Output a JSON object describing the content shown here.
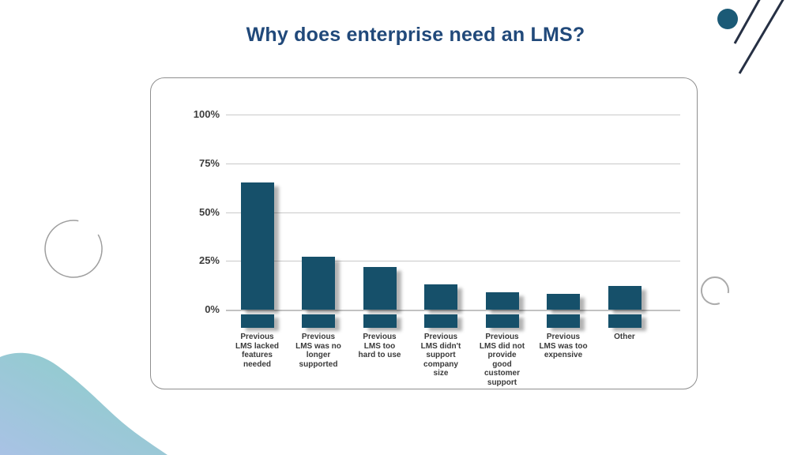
{
  "slide": {
    "title": "Why does enterprise need an LMS?"
  },
  "chart_data": {
    "type": "bar",
    "title": "Why does enterprise need an LMS?",
    "xlabel": "",
    "ylabel": "",
    "unit": "%",
    "ylim": [
      0,
      100
    ],
    "grid": true,
    "legend": false,
    "yticks": [
      {
        "value": 100,
        "label": "100%"
      },
      {
        "value": 75,
        "label": "75%"
      },
      {
        "value": 50,
        "label": "50%"
      },
      {
        "value": 25,
        "label": "25%"
      },
      {
        "value": 0,
        "label": "0%"
      }
    ],
    "categories": [
      {
        "label": "Previous LMS lacked features needed",
        "lines": [
          "Previous",
          "LMS lacked",
          "features",
          "needed"
        ]
      },
      {
        "label": "Previous LMS was no longer supported",
        "lines": [
          "Previous",
          "LMS was no",
          "longer",
          "supported"
        ]
      },
      {
        "label": "Previous LMS too hard to use",
        "lines": [
          "Previous",
          "LMS too",
          "hard to use"
        ]
      },
      {
        "label": "Previous LMS didn't support company size",
        "lines": [
          "Previous",
          "LMS didn't",
          "support",
          "company",
          "size"
        ]
      },
      {
        "label": "Previous LMS did not provide good customer support",
        "lines": [
          "Previous",
          "LMS did not",
          "provide",
          "good",
          "customer",
          "support"
        ]
      },
      {
        "label": "Previous LMS was too expensive",
        "lines": [
          "Previous",
          "LMS was too",
          "expensive"
        ]
      },
      {
        "label": "Other",
        "lines": [
          "Other"
        ]
      }
    ],
    "values": [
      65,
      27,
      22,
      13,
      9,
      8,
      12
    ]
  },
  "colors": {
    "bar": "#16506A",
    "title_text": "#21497A",
    "gridline": "#C9C9C9",
    "axis_text": "#3D3D3D",
    "category_text": "#3A3A3A",
    "card_border": "#8F8F8F",
    "accent_dot": "#1B5A76",
    "accent_line": "#263044",
    "circle_outline_left": "#9E9E9E",
    "circle_outline_right": "#ABABAB",
    "blob_gradient_start": "#A9C2E5",
    "blob_gradient_end": "#8ACFC7"
  }
}
